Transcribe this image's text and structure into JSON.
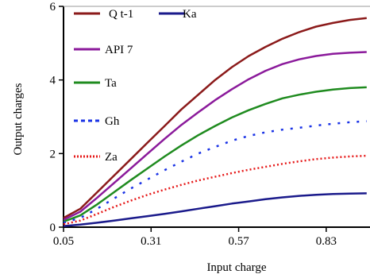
{
  "chart_data": {
    "type": "line",
    "title": "",
    "xlabel": "Input charge",
    "ylabel": "Output charges",
    "xlim": [
      0.05,
      0.96
    ],
    "ylim": [
      0,
      6
    ],
    "x_ticks": [
      "0.05",
      "0.31",
      "0.57",
      "0.83"
    ],
    "x_tick_values": [
      0.05,
      0.31,
      0.57,
      0.83
    ],
    "y_ticks": [
      "0",
      "2",
      "4",
      "6"
    ],
    "y_tick_values": [
      0,
      2,
      4,
      6
    ],
    "grid": false,
    "legend_position": "inside-left",
    "x": [
      0.05,
      0.1,
      0.15,
      0.2,
      0.25,
      0.3,
      0.35,
      0.4,
      0.45,
      0.5,
      0.55,
      0.6,
      0.65,
      0.7,
      0.75,
      0.8,
      0.85,
      0.9,
      0.95
    ],
    "series": [
      {
        "name": "Q t-1",
        "color": "#8b1a1a",
        "style": "solid",
        "values": [
          0.25,
          0.5,
          0.95,
          1.4,
          1.85,
          2.3,
          2.75,
          3.2,
          3.6,
          4.0,
          4.35,
          4.65,
          4.9,
          5.12,
          5.3,
          5.45,
          5.55,
          5.63,
          5.68
        ]
      },
      {
        "name": "Ka",
        "color": "#1a1a8b",
        "style": "solid",
        "values": [
          0.03,
          0.07,
          0.12,
          0.18,
          0.24,
          0.3,
          0.36,
          0.43,
          0.5,
          0.57,
          0.64,
          0.7,
          0.76,
          0.81,
          0.85,
          0.88,
          0.9,
          0.91,
          0.92
        ]
      },
      {
        "name": "API 7",
        "color": "#8b1a9b",
        "style": "solid",
        "values": [
          0.2,
          0.42,
          0.8,
          1.2,
          1.6,
          2.0,
          2.4,
          2.78,
          3.12,
          3.45,
          3.75,
          4.02,
          4.25,
          4.43,
          4.56,
          4.65,
          4.71,
          4.74,
          4.76
        ]
      },
      {
        "name": "Ta",
        "color": "#1f8b1f",
        "style": "solid",
        "values": [
          0.15,
          0.32,
          0.62,
          0.95,
          1.28,
          1.6,
          1.92,
          2.22,
          2.5,
          2.75,
          2.98,
          3.18,
          3.35,
          3.5,
          3.6,
          3.68,
          3.74,
          3.78,
          3.8
        ]
      },
      {
        "name": "Gh",
        "color": "#1a33e6",
        "style": "dotted",
        "values": [
          0.12,
          0.25,
          0.5,
          0.78,
          1.05,
          1.3,
          1.55,
          1.78,
          2.0,
          2.18,
          2.35,
          2.48,
          2.58,
          2.65,
          2.7,
          2.76,
          2.81,
          2.85,
          2.88
        ]
      },
      {
        "name": "Za",
        "color": "#e61a1a",
        "style": "dotted",
        "values": [
          0.08,
          0.18,
          0.36,
          0.55,
          0.72,
          0.88,
          1.02,
          1.15,
          1.27,
          1.37,
          1.47,
          1.56,
          1.64,
          1.72,
          1.79,
          1.85,
          1.89,
          1.92,
          1.94
        ]
      }
    ]
  }
}
